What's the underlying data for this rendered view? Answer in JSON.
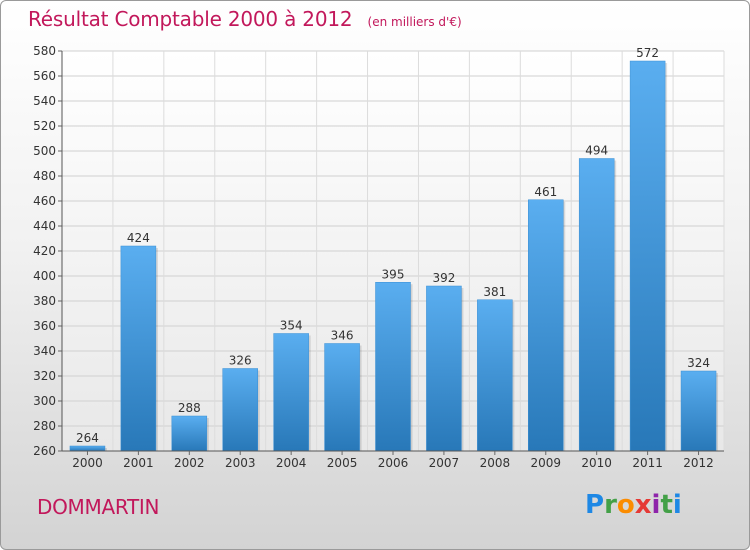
{
  "header": {
    "title": "Résultat Comptable 2000 à 2012",
    "subtitle": "(en milliers d'€)"
  },
  "footer": {
    "city": "DOMMARTIN",
    "logo_text": "Proxiti",
    "logo_colors": [
      "#1e88e5",
      "#43a047",
      "#fb8c00",
      "#e53935",
      "#8e24aa",
      "#43a047",
      "#1e88e5"
    ]
  },
  "colors": {
    "accent": "#c2185b",
    "bar_top": "#5aaef0",
    "bar_bottom": "#2878b8"
  },
  "chart_data": {
    "type": "bar",
    "title": "Résultat Comptable 2000 à 2012",
    "subtitle": "(en milliers d'€)",
    "categories": [
      "2000",
      "2001",
      "2002",
      "2003",
      "2004",
      "2005",
      "2006",
      "2007",
      "2008",
      "2009",
      "2010",
      "2011",
      "2012"
    ],
    "values": [
      264,
      424,
      288,
      326,
      354,
      346,
      395,
      392,
      381,
      461,
      494,
      572,
      324
    ],
    "ylim": [
      260,
      580
    ],
    "yticks": [
      260,
      280,
      300,
      320,
      340,
      360,
      380,
      400,
      420,
      440,
      460,
      480,
      500,
      520,
      540,
      560,
      580
    ],
    "grid": true,
    "data_labels": true
  }
}
